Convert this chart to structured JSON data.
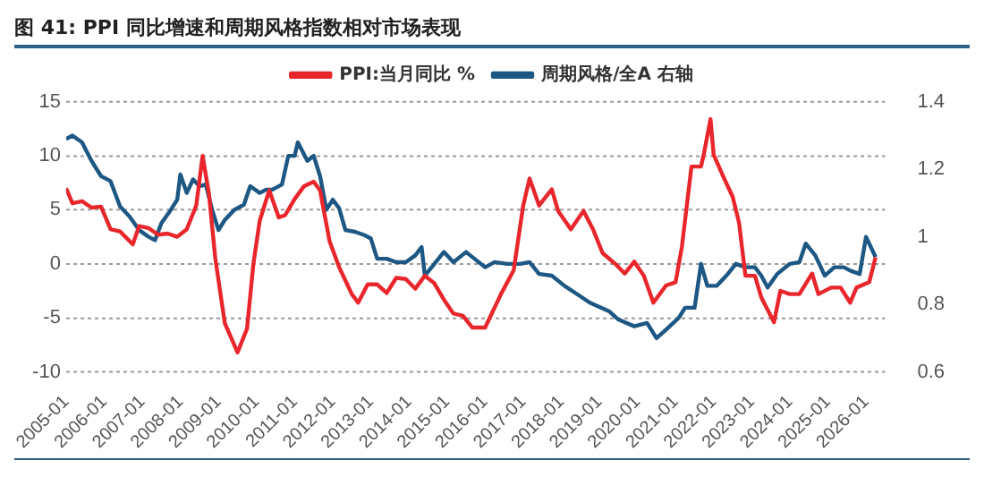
{
  "chart_data": {
    "type": "line",
    "title": "图 41: PPI 同比增速和周期风格指数相对市场表现",
    "x": [
      "2005-01",
      "2005-03",
      "2005-06",
      "2005-09",
      "2005-12",
      "2006-03",
      "2006-06",
      "2006-10",
      "2006-12",
      "2007-03",
      "2007-06",
      "2007-09",
      "2007-12",
      "2008-03",
      "2008-06",
      "2008-08",
      "2008-10",
      "2008-12",
      "2009-03",
      "2009-07",
      "2009-10",
      "2009-12",
      "2010-02",
      "2010-05",
      "2010-08",
      "2010-10",
      "2011-01",
      "2011-04",
      "2011-07",
      "2011-09",
      "2011-12",
      "2012-03",
      "2012-07",
      "2012-09",
      "2012-12",
      "2013-03",
      "2013-06",
      "2013-09",
      "2013-12",
      "2014-03",
      "2014-06",
      "2014-09",
      "2014-12",
      "2015-03",
      "2015-06",
      "2015-09",
      "2016-01",
      "2016-06",
      "2016-10",
      "2017-01",
      "2017-03",
      "2017-06",
      "2017-10",
      "2017-12",
      "2018-04",
      "2018-08",
      "2018-11",
      "2019-02",
      "2019-06",
      "2019-09",
      "2019-12",
      "2020-03",
      "2020-06",
      "2020-10",
      "2021-01",
      "2021-03",
      "2021-06",
      "2021-09",
      "2021-10",
      "2021-12",
      "2022-01",
      "2022-04",
      "2022-07",
      "2022-09",
      "2022-11",
      "2023-02",
      "2023-04",
      "2023-08",
      "2023-10",
      "2024-01",
      "2024-04",
      "2024-08",
      "2024-10",
      "2025-02",
      "2025-05",
      "2025-08",
      "2025-10",
      "2026-02",
      "2026-04"
    ],
    "series": [
      {
        "name": "PPI:当月同比 %",
        "color": "#e8262b",
        "values": [
          7.0,
          5.6,
          5.8,
          5.2,
          5.3,
          3.2,
          3.0,
          1.8,
          3.5,
          3.3,
          2.7,
          2.8,
          2.5,
          3.2,
          5.4,
          10.0,
          6.5,
          0.5,
          -5.5,
          -8.2,
          -6.0,
          0.0,
          4.0,
          6.8,
          4.3,
          4.5,
          6.0,
          7.2,
          7.6,
          6.8,
          2.1,
          -0.3,
          -2.8,
          -3.6,
          -1.9,
          -1.9,
          -2.7,
          -1.3,
          -1.4,
          -2.3,
          -1.1,
          -1.8,
          -3.3,
          -4.6,
          -4.8,
          -5.9,
          -5.9,
          -2.8,
          -0.6,
          5.4,
          7.9,
          5.4,
          6.9,
          4.9,
          3.2,
          4.9,
          3.2,
          1.0,
          0.0,
          -0.9,
          0.2,
          -1.1,
          -3.6,
          -2.0,
          -1.7,
          1.6,
          9.0,
          9.0,
          10.3,
          13.4,
          10.1,
          8.1,
          6.2,
          3.8,
          -1.1,
          -1.1,
          -3.1,
          -5.4,
          -2.5,
          -2.8,
          -2.8,
          -0.9,
          -2.8,
          -2.2,
          -2.2,
          -3.6,
          -2.2,
          -1.7,
          0.6
        ]
      },
      {
        "name": "周期风格/全A 右轴",
        "color": "#1d5783",
        "axis": "y2",
        "x": [
          "2005-01",
          "2005-03",
          "2005-06",
          "2005-09",
          "2005-12",
          "2006-03",
          "2006-06",
          "2006-09",
          "2006-12",
          "2007-03",
          "2007-05",
          "2007-07",
          "2007-10",
          "2007-12",
          "2008-01",
          "2008-03",
          "2008-05",
          "2008-07",
          "2008-09",
          "2008-11",
          "2009-01",
          "2009-03",
          "2009-06",
          "2009-09",
          "2009-11",
          "2010-02",
          "2010-04",
          "2010-06",
          "2010-09",
          "2010-11",
          "2011-01",
          "2011-02",
          "2011-05",
          "2011-07",
          "2011-09",
          "2011-11",
          "2012-01",
          "2012-03",
          "2012-05",
          "2012-08",
          "2012-11",
          "2013-01",
          "2013-03",
          "2013-06",
          "2013-09",
          "2013-12",
          "2014-03",
          "2014-05",
          "2014-06",
          "2014-09",
          "2014-12",
          "2015-03",
          "2015-07",
          "2016-01",
          "2016-04",
          "2016-08",
          "2016-12",
          "2017-03",
          "2017-06",
          "2017-10",
          "2018-02",
          "2018-06",
          "2018-10",
          "2019-04",
          "2019-07",
          "2019-12",
          "2020-04",
          "2020-07",
          "2020-10",
          "2021-02",
          "2021-04",
          "2021-07",
          "2021-09",
          "2021-11",
          "2022-02",
          "2022-05",
          "2022-08",
          "2022-11",
          "2023-02",
          "2023-04",
          "2023-06",
          "2023-09",
          "2024-01",
          "2024-04",
          "2024-06",
          "2024-09",
          "2024-12",
          "2025-03",
          "2025-06",
          "2025-08",
          "2025-11",
          "2026-01",
          "2026-04"
        ],
        "values": [
          1.29,
          1.3,
          1.28,
          1.225,
          1.18,
          1.165,
          1.09,
          1.06,
          1.02,
          1.0,
          0.99,
          1.04,
          1.08,
          1.11,
          1.185,
          1.13,
          1.17,
          1.15,
          1.155,
          1.08,
          1.02,
          1.05,
          1.08,
          1.095,
          1.15,
          1.13,
          1.14,
          1.14,
          1.155,
          1.24,
          1.24,
          1.28,
          1.225,
          1.24,
          1.18,
          1.08,
          1.11,
          1.085,
          1.02,
          1.015,
          1.005,
          0.995,
          0.935,
          0.935,
          0.925,
          0.925,
          0.945,
          0.97,
          0.885,
          0.92,
          0.955,
          0.925,
          0.955,
          0.91,
          0.925,
          0.92,
          0.92,
          0.925,
          0.89,
          0.885,
          0.855,
          0.83,
          0.805,
          0.78,
          0.755,
          0.735,
          0.745,
          0.7,
          0.725,
          0.76,
          0.79,
          0.79,
          0.92,
          0.855,
          0.855,
          0.885,
          0.92,
          0.91,
          0.91,
          0.885,
          0.85,
          0.89,
          0.92,
          0.925,
          0.98,
          0.945,
          0.885,
          0.91,
          0.91,
          0.9,
          0.89,
          1.0,
          0.94
        ]
      }
    ],
    "xlim": [
      "2005-01",
      "2026-07"
    ],
    "xticks": [
      "2005-01",
      "2006-01",
      "2007-01",
      "2008-01",
      "2009-01",
      "2010-01",
      "2011-01",
      "2012-01",
      "2013-01",
      "2014-01",
      "2015-01",
      "2016-01",
      "2017-01",
      "2018-01",
      "2019-01",
      "2020-01",
      "2021-01",
      "2022-01",
      "2023-01",
      "2024-01",
      "2025-01",
      "2026-01"
    ],
    "ylim": [
      -10,
      15
    ],
    "yticks": [
      -10,
      -5,
      0,
      5,
      10,
      15
    ],
    "y2lim": [
      0.6,
      1.4
    ],
    "y2ticks": [
      0.6,
      0.8,
      1,
      1.2,
      1.4
    ],
    "grid": "y",
    "legend": "top",
    "marker": "none",
    "line_style": "solid"
  }
}
